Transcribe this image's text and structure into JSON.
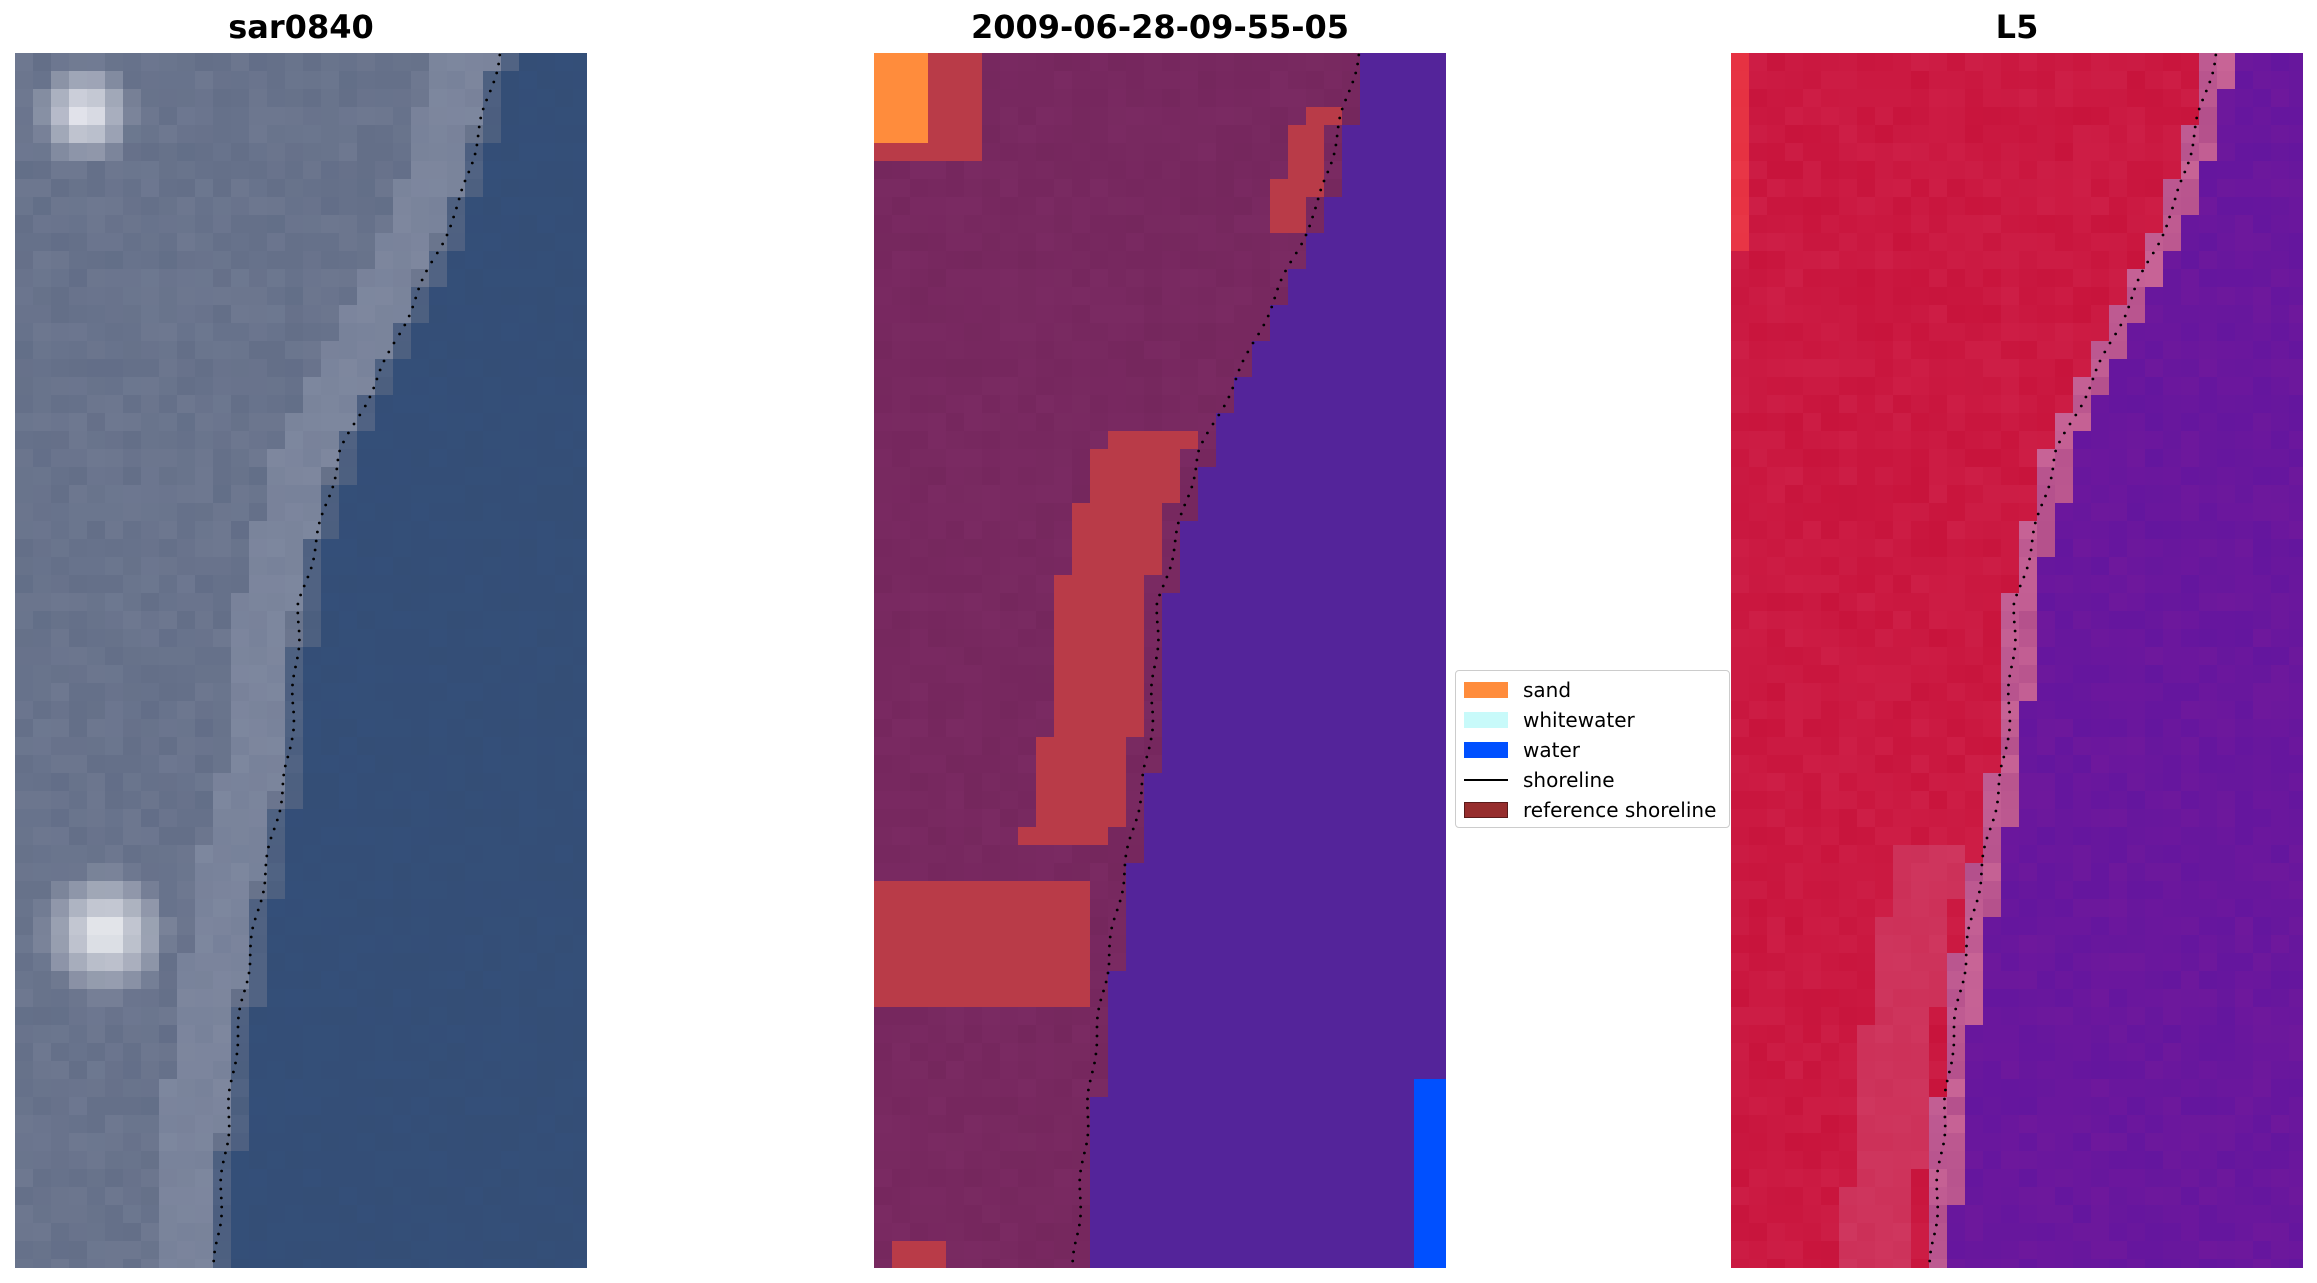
{
  "titles": {
    "image": "sar0840",
    "classified": "2009-06-28-09-55-05",
    "band": "L5"
  },
  "legend": {
    "items": [
      {
        "label": "sand",
        "color": "#ff8c3c",
        "kind": "patch"
      },
      {
        "label": "whitewater",
        "color": "#c8fafa",
        "kind": "patch"
      },
      {
        "label": "water",
        "color": "#0050ff",
        "kind": "patch"
      },
      {
        "label": "shoreline",
        "color": "#000000",
        "kind": "line"
      },
      {
        "label": "reference shoreline",
        "color": "#962d2d",
        "kind": "patch"
      }
    ]
  },
  "colors": {
    "water_rgb": "#344e76",
    "land_rgb": "#6e7890",
    "class_land": "#7a2a62",
    "class_water": "#54249a",
    "class_sand": "#ff8c3c",
    "class_reference": "#b93b48",
    "band_high": "#c8143c",
    "band_low": "#6e189c",
    "shoreline_dots": "#000000"
  }
}
